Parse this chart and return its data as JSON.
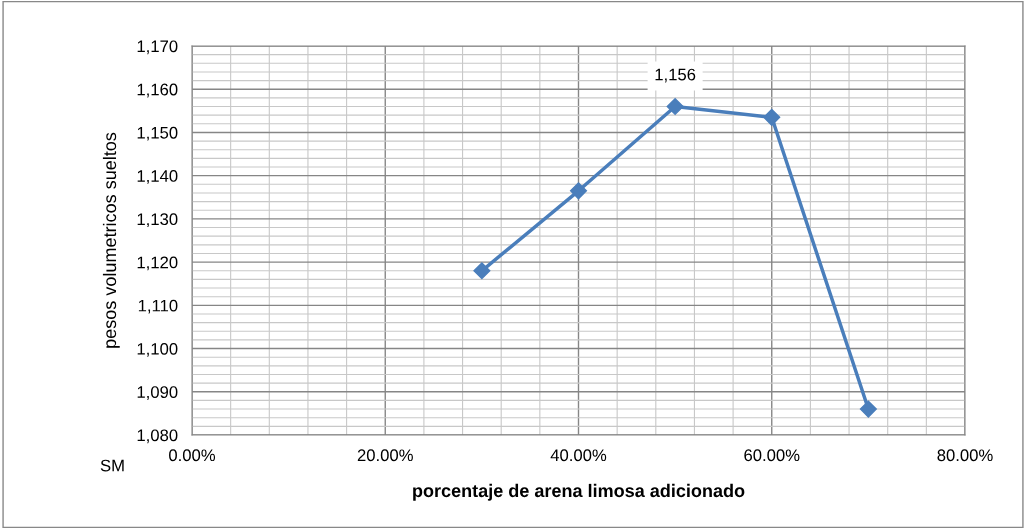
{
  "chart_data": {
    "type": "line",
    "xlabel": "porcentaje de arena limosa adicionado",
    "ylabel": "pesos volumetricos sueltos",
    "x": [
      30,
      40,
      50,
      60,
      70
    ],
    "series": [
      {
        "color": "#4a7ebb",
        "values": [
          1118,
          1136.5,
          1156,
          1153.5,
          1086
        ],
        "value_labels": [
          null,
          null,
          "1,156",
          null,
          null
        ]
      }
    ],
    "marker": "diamond",
    "grid": true,
    "annotations": [
      "SM"
    ],
    "xlim": [
      0,
      80
    ],
    "xticks": [
      {
        "value": 0,
        "label": "0.00%"
      },
      {
        "value": 4,
        "label": null
      },
      {
        "value": 8,
        "label": null
      },
      {
        "value": 12,
        "label": null
      },
      {
        "value": 16,
        "label": null
      },
      {
        "value": 20,
        "label": "20.00%"
      },
      {
        "value": 24,
        "label": null
      },
      {
        "value": 28,
        "label": null
      },
      {
        "value": 32,
        "label": null
      },
      {
        "value": 36,
        "label": null
      },
      {
        "value": 40,
        "label": "40.00%"
      },
      {
        "value": 44,
        "label": null
      },
      {
        "value": 48,
        "label": null
      },
      {
        "value": 52,
        "label": null
      },
      {
        "value": 56,
        "label": null
      },
      {
        "value": 60,
        "label": "60.00%"
      },
      {
        "value": 64,
        "label": null
      },
      {
        "value": 68,
        "label": null
      },
      {
        "value": 72,
        "label": null
      },
      {
        "value": 76,
        "label": null
      },
      {
        "value": 80,
        "label": "80.00%"
      }
    ],
    "ylim": [
      1080,
      1170
    ],
    "yticks": [
      {
        "value": 1080,
        "label": "1,080"
      },
      {
        "value": 1082,
        "label": null
      },
      {
        "value": 1084,
        "label": null
      },
      {
        "value": 1086,
        "label": null
      },
      {
        "value": 1088,
        "label": null
      },
      {
        "value": 1090,
        "label": "1,090"
      },
      {
        "value": 1092,
        "label": null
      },
      {
        "value": 1094,
        "label": null
      },
      {
        "value": 1096,
        "label": null
      },
      {
        "value": 1098,
        "label": null
      },
      {
        "value": 1100,
        "label": "1,100"
      },
      {
        "value": 1102,
        "label": null
      },
      {
        "value": 1104,
        "label": null
      },
      {
        "value": 1106,
        "label": null
      },
      {
        "value": 1108,
        "label": null
      },
      {
        "value": 1110,
        "label": "1,110"
      },
      {
        "value": 1112,
        "label": null
      },
      {
        "value": 1114,
        "label": null
      },
      {
        "value": 1116,
        "label": null
      },
      {
        "value": 1118,
        "label": null
      },
      {
        "value": 1120,
        "label": "1,120"
      },
      {
        "value": 1122,
        "label": null
      },
      {
        "value": 1124,
        "label": null
      },
      {
        "value": 1126,
        "label": null
      },
      {
        "value": 1128,
        "label": null
      },
      {
        "value": 1130,
        "label": "1,130"
      },
      {
        "value": 1132,
        "label": null
      },
      {
        "value": 1134,
        "label": null
      },
      {
        "value": 1136,
        "label": null
      },
      {
        "value": 1138,
        "label": null
      },
      {
        "value": 1140,
        "label": "1,140"
      },
      {
        "value": 1142,
        "label": null
      },
      {
        "value": 1144,
        "label": null
      },
      {
        "value": 1146,
        "label": null
      },
      {
        "value": 1148,
        "label": null
      },
      {
        "value": 1150,
        "label": "1,150"
      },
      {
        "value": 1152,
        "label": null
      },
      {
        "value": 1154,
        "label": null
      },
      {
        "value": 1156,
        "label": null
      },
      {
        "value": 1158,
        "label": null
      },
      {
        "value": 1160,
        "label": "1,160"
      },
      {
        "value": 1162,
        "label": null
      },
      {
        "value": 1164,
        "label": null
      },
      {
        "value": 1166,
        "label": null
      },
      {
        "value": 1168,
        "label": null
      },
      {
        "value": 1170,
        "label": "1,170"
      }
    ]
  }
}
